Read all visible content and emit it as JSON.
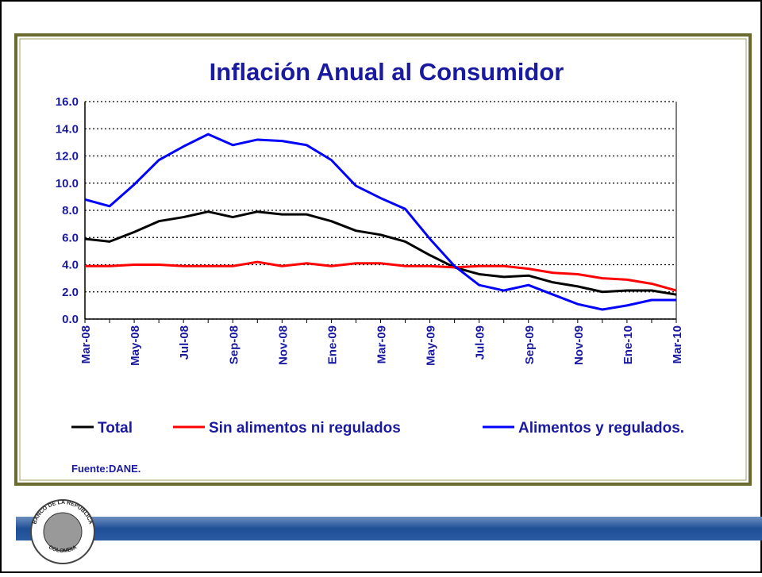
{
  "chart_data": {
    "type": "line",
    "title": "Inflación Anual al Consumidor",
    "categories": [
      "Mar-08",
      null,
      "May-08",
      null,
      "Jul-08",
      null,
      "Sep-08",
      null,
      "Nov-08",
      null,
      "Ene-09",
      null,
      "Mar-09",
      null,
      "May-09",
      null,
      "Jul-09",
      null,
      "Sep-09",
      null,
      "Nov-09",
      null,
      "Ene-10",
      null,
      "Mar-10"
    ],
    "series": [
      {
        "name": "Total",
        "color": "#000000",
        "values": [
          5.9,
          5.7,
          6.4,
          7.2,
          7.5,
          7.9,
          7.5,
          7.9,
          7.7,
          7.7,
          7.2,
          6.5,
          6.2,
          5.7,
          4.7,
          3.8,
          3.3,
          3.1,
          3.2,
          2.7,
          2.4,
          2.0,
          2.1,
          2.1,
          1.8
        ]
      },
      {
        "name": "Sin alimentos ni regulados",
        "color": "#ff0000",
        "values": [
          3.9,
          3.9,
          4.0,
          4.0,
          3.9,
          3.9,
          3.9,
          4.2,
          3.9,
          4.1,
          3.9,
          4.1,
          4.1,
          3.9,
          3.9,
          3.8,
          3.9,
          3.9,
          3.7,
          3.4,
          3.3,
          3.0,
          2.9,
          2.6,
          2.1
        ]
      },
      {
        "name": "Alimentos y regulados.",
        "color": "#0000ff",
        "values": [
          8.8,
          8.3,
          9.9,
          11.7,
          12.7,
          13.6,
          12.8,
          13.2,
          13.1,
          12.8,
          11.7,
          9.8,
          8.9,
          8.1,
          5.9,
          3.9,
          2.5,
          2.1,
          2.5,
          1.8,
          1.1,
          0.7,
          1.0,
          1.4,
          1.4
        ]
      }
    ],
    "ylim": [
      0,
      16
    ],
    "yticks": [
      {
        "value": 0,
        "label": "0.0"
      },
      {
        "value": 2,
        "label": "2.0"
      },
      {
        "value": 4,
        "label": "4.0"
      },
      {
        "value": 6,
        "label": "6.0"
      },
      {
        "value": 8,
        "label": "8.0"
      },
      {
        "value": 10,
        "label": "10.0"
      },
      {
        "value": 12,
        "label": "12.0"
      },
      {
        "value": 14,
        "label": "14.0"
      },
      {
        "value": 16,
        "label": "16.0"
      }
    ],
    "grid": true,
    "source": "Fuente:DANE."
  },
  "logo": {
    "top": "BANCO DE LA REPUBLICA",
    "bottom": "COLOMBIA"
  }
}
